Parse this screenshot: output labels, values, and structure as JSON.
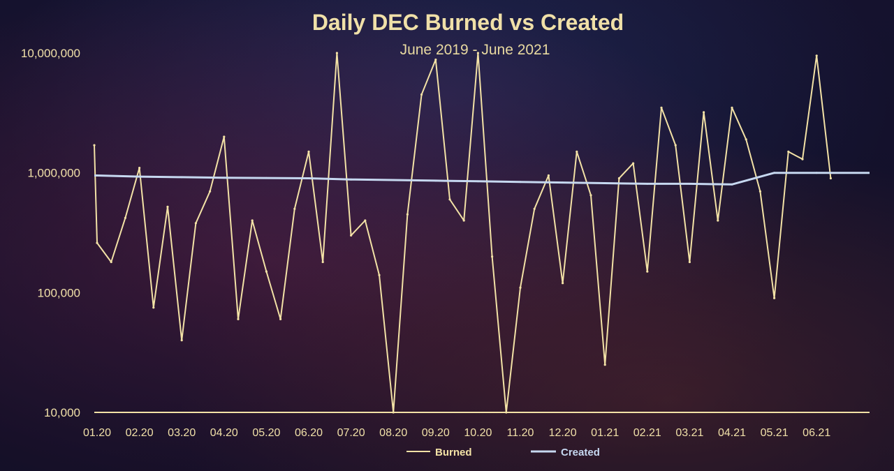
{
  "chart_data": {
    "type": "line",
    "title": "Daily DEC Burned vs Created",
    "subtitle": "June 2019 - June 2021",
    "xlabel": "",
    "ylabel": "",
    "y_scale": "log",
    "ylim": [
      10000,
      10000000
    ],
    "y_ticks": [
      10000,
      100000,
      1000000,
      10000000
    ],
    "y_tick_labels": [
      "10,000",
      "100,000",
      "1,000,000",
      "10,000,000"
    ],
    "x_tick_labels": [
      "01.20",
      "02.20",
      "03.20",
      "04.20",
      "05.20",
      "06.20",
      "07.20",
      "08.20",
      "09.20",
      "10.20",
      "11.20",
      "12.20",
      "01.21",
      "02.21",
      "03.21",
      "04.21",
      "05.21",
      "06.21"
    ],
    "grid": false,
    "legend_position": "bottom",
    "series": [
      {
        "name": "Burned",
        "color": "#f3e2a6",
        "x": [
          "01.20",
          "01.20",
          "01.20",
          "02.20",
          "02.20",
          "02.20",
          "03.20",
          "03.20",
          "03.20",
          "04.20",
          "04.20",
          "04.20",
          "05.20",
          "05.20",
          "05.20",
          "06.20",
          "06.20",
          "06.20",
          "07.20",
          "07.20",
          "07.20",
          "08.20",
          "08.20",
          "08.20",
          "09.20",
          "09.20",
          "09.20",
          "10.20",
          "10.20",
          "10.20",
          "11.20",
          "11.20",
          "11.20",
          "12.20",
          "12.20",
          "12.20",
          "01.21",
          "01.21",
          "01.21",
          "02.21",
          "02.21",
          "02.21",
          "03.21",
          "03.21",
          "03.21",
          "04.21",
          "04.21",
          "04.21",
          "05.21",
          "05.21",
          "05.21",
          "06.21",
          "06.21",
          "06.21"
        ],
        "values": [
          1700000,
          260000,
          180000,
          420000,
          1100000,
          75000,
          520000,
          40000,
          380000,
          700000,
          2000000,
          60000,
          400000,
          150000,
          60000,
          500000,
          1500000,
          180000,
          10000000,
          300000,
          400000,
          140000,
          10000,
          450000,
          4500000,
          8800000,
          600000,
          400000,
          10000000,
          200000,
          10000,
          110000,
          500000,
          950000,
          120000,
          1500000,
          650000,
          25000,
          900000,
          1200000,
          150000,
          3500000,
          1700000,
          180000,
          3200000,
          400000,
          3500000,
          1900000,
          700000,
          90000,
          1500000,
          1300000,
          9500000,
          900000
        ]
      },
      {
        "name": "Created",
        "color": "#c6d8f0",
        "x": [
          "01.20",
          "02.20",
          "03.20",
          "04.20",
          "05.20",
          "06.20",
          "07.20",
          "08.20",
          "09.20",
          "10.20",
          "11.20",
          "12.20",
          "01.21",
          "02.21",
          "03.21",
          "04.21",
          "05.21",
          "06.21"
        ],
        "values": [
          950000,
          930000,
          920000,
          910000,
          905000,
          900000,
          880000,
          870000,
          860000,
          850000,
          840000,
          830000,
          820000,
          810000,
          810000,
          800000,
          1000000,
          1000000
        ]
      }
    ]
  }
}
